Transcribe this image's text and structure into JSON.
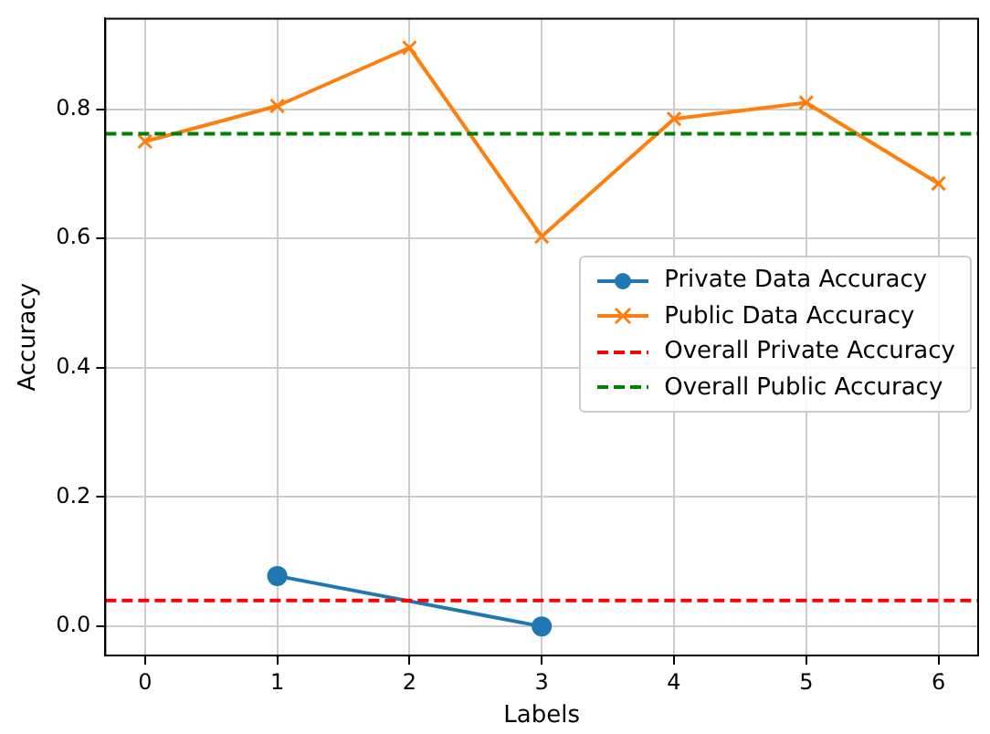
{
  "chart_data": {
    "type": "line",
    "xlabel": "Labels",
    "ylabel": "Accuracy",
    "series": [
      {
        "name": "Private Data Accuracy",
        "color": "#1f77b4",
        "marker": "circle",
        "x": [
          1,
          3
        ],
        "values": [
          0.078,
          0.0
        ]
      },
      {
        "name": "Public Data Accuracy",
        "color": "#ff7f0e",
        "marker": "cross",
        "x": [
          0,
          1,
          2,
          3,
          4,
          5,
          6
        ],
        "values": [
          0.75,
          0.805,
          0.895,
          0.603,
          0.785,
          0.81,
          0.685
        ]
      }
    ],
    "ref_lines": [
      {
        "axis": "y",
        "value": 0.04,
        "label": "Overall Private Accuracy",
        "color": "#ff0000",
        "line_style": "dashed"
      },
      {
        "axis": "y",
        "value": 0.762,
        "label": "Overall Public Accuracy",
        "color": "#008000",
        "line_style": "dashed"
      }
    ],
    "xlim": [
      -0.3,
      6.3
    ],
    "xticks": [
      0,
      1,
      2,
      3,
      4,
      5,
      6
    ],
    "ylim": [
      -0.045,
      0.94
    ],
    "yticks": [
      {
        "value": 0,
        "label": "0.0"
      },
      {
        "value": 0.2,
        "label": "0.2"
      },
      {
        "value": 0.4,
        "label": "0.4"
      },
      {
        "value": 0.6,
        "label": "0.6"
      },
      {
        "value": 0.8,
        "label": "0.8"
      }
    ],
    "grid": true,
    "legend": "right",
    "line_style": "solid"
  }
}
